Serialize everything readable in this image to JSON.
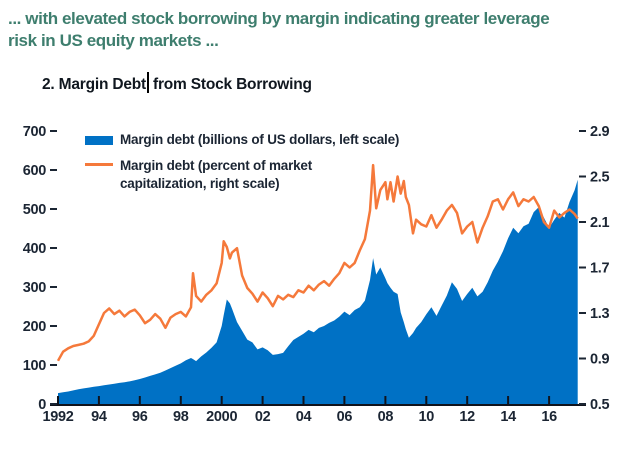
{
  "page": {
    "lede_line1": "... with elevated stock borrowing by margin indicating greater leverage",
    "lede_line2": "risk in US equity markets ...",
    "figure_title_part1": "2. Margin Debt",
    "figure_title_part2": "from Stock Borrowing"
  },
  "legend": {
    "series1_label": "Margin debt (billions of US dollars, left scale)",
    "series2_label_line1": "Margin debt (percent of market",
    "series2_label_line2": "capitalization, right scale)"
  },
  "colors": {
    "margin_debt_area": "#0071C5",
    "margin_debt_pct_line": "#F5793B",
    "lede_text": "#3E7E6E",
    "axis_text": "#1B2533",
    "axis_line": "#10131C"
  },
  "chart_data": {
    "type": "area",
    "title": "2. Margin Debt from Stock Borrowing",
    "x_range": [
      1992,
      2017.4
    ],
    "x_tick_labels": [
      "1992",
      "94",
      "96",
      "98",
      "2000",
      "02",
      "04",
      "06",
      "08",
      "10",
      "12",
      "14",
      "16"
    ],
    "x_tick_years": [
      1992,
      1994,
      1996,
      1998,
      2000,
      2002,
      2004,
      2006,
      2008,
      2010,
      2012,
      2014,
      2016
    ],
    "left_axis": {
      "label": "Margin debt (billions of US dollars)",
      "range": [
        0,
        700
      ],
      "ticks": [
        0,
        100,
        200,
        300,
        400,
        500,
        600,
        700
      ]
    },
    "right_axis": {
      "label": "Margin debt (percent of market capitalization)",
      "range": [
        0.5,
        2.9
      ],
      "ticks": [
        0.5,
        0.9,
        1.3,
        1.7,
        2.1,
        2.5,
        2.9
      ]
    },
    "grid": false,
    "legend_position": "top-left",
    "x": [
      1992.0,
      1992.25,
      1992.5,
      1992.75,
      1993.0,
      1993.25,
      1993.5,
      1993.75,
      1994.0,
      1994.25,
      1994.5,
      1994.75,
      1995.0,
      1995.25,
      1995.5,
      1995.75,
      1996.0,
      1996.25,
      1996.5,
      1996.75,
      1997.0,
      1997.25,
      1997.5,
      1997.75,
      1998.0,
      1998.25,
      1998.5,
      1998.6,
      1998.75,
      1999.0,
      1999.25,
      1999.5,
      1999.75,
      2000.0,
      2000.1,
      2000.25,
      2000.4,
      2000.5,
      2000.75,
      2001.0,
      2001.25,
      2001.5,
      2001.75,
      2002.0,
      2002.25,
      2002.5,
      2002.75,
      2003.0,
      2003.25,
      2003.5,
      2003.75,
      2004.0,
      2004.25,
      2004.5,
      2004.75,
      2005.0,
      2005.25,
      2005.5,
      2005.75,
      2006.0,
      2006.25,
      2006.5,
      2006.75,
      2007.0,
      2007.25,
      2007.4,
      2007.55,
      2007.75,
      2008.0,
      2008.1,
      2008.25,
      2008.4,
      2008.6,
      2008.75,
      2008.9,
      2009.0,
      2009.15,
      2009.35,
      2009.5,
      2009.75,
      2010.0,
      2010.25,
      2010.5,
      2010.75,
      2011.0,
      2011.25,
      2011.5,
      2011.75,
      2012.0,
      2012.25,
      2012.5,
      2012.75,
      2013.0,
      2013.25,
      2013.5,
      2013.75,
      2014.0,
      2014.25,
      2014.5,
      2014.75,
      2015.0,
      2015.25,
      2015.5,
      2015.75,
      2016.0,
      2016.25,
      2016.5,
      2016.75,
      2017.0,
      2017.25,
      2017.4
    ],
    "series": [
      {
        "name": "Margin debt (billions of US dollars, left scale)",
        "type": "area",
        "axis": "left",
        "color": "#0071C5",
        "values": [
          28,
          30,
          32,
          35,
          38,
          40,
          42,
          44,
          46,
          48,
          50,
          52,
          54,
          56,
          58,
          61,
          64,
          68,
          72,
          76,
          80,
          86,
          92,
          98,
          104,
          112,
          118,
          115,
          110,
          122,
          132,
          144,
          158,
          200,
          228,
          268,
          258,
          245,
          210,
          188,
          165,
          158,
          140,
          145,
          138,
          126,
          128,
          131,
          148,
          164,
          172,
          180,
          190,
          184,
          195,
          200,
          208,
          214,
          224,
          237,
          228,
          241,
          248,
          265,
          318,
          374,
          332,
          350,
          322,
          310,
          298,
          288,
          282,
          235,
          210,
          192,
          170,
          182,
          195,
          210,
          230,
          248,
          226,
          252,
          278,
          312,
          295,
          264,
          282,
          298,
          276,
          288,
          312,
          342,
          365,
          392,
          425,
          452,
          438,
          456,
          462,
          492,
          505,
          478,
          452,
          472,
          490,
          478,
          518,
          548,
          575
        ]
      },
      {
        "name": "Margin debt (percent of market capitalization, right scale)",
        "type": "line",
        "axis": "right",
        "color": "#F5793B",
        "values": [
          0.88,
          0.96,
          0.99,
          1.01,
          1.02,
          1.03,
          1.05,
          1.1,
          1.2,
          1.3,
          1.34,
          1.29,
          1.32,
          1.27,
          1.31,
          1.33,
          1.28,
          1.21,
          1.24,
          1.29,
          1.25,
          1.17,
          1.26,
          1.29,
          1.31,
          1.27,
          1.35,
          1.65,
          1.45,
          1.4,
          1.46,
          1.5,
          1.56,
          1.74,
          1.93,
          1.88,
          1.78,
          1.83,
          1.87,
          1.63,
          1.52,
          1.47,
          1.4,
          1.48,
          1.43,
          1.36,
          1.45,
          1.42,
          1.46,
          1.44,
          1.5,
          1.48,
          1.54,
          1.5,
          1.55,
          1.58,
          1.54,
          1.6,
          1.65,
          1.74,
          1.7,
          1.74,
          1.85,
          1.95,
          2.2,
          2.6,
          2.22,
          2.38,
          2.45,
          2.3,
          2.45,
          2.28,
          2.5,
          2.35,
          2.46,
          2.32,
          2.25,
          2.0,
          2.12,
          2.08,
          2.06,
          2.16,
          2.05,
          2.12,
          2.2,
          2.25,
          2.18,
          2.0,
          2.06,
          2.1,
          1.92,
          2.05,
          2.15,
          2.28,
          2.3,
          2.21,
          2.3,
          2.36,
          2.24,
          2.3,
          2.28,
          2.32,
          2.24,
          2.1,
          2.05,
          2.2,
          2.14,
          2.18,
          2.21,
          2.17,
          2.13
        ]
      }
    ]
  }
}
